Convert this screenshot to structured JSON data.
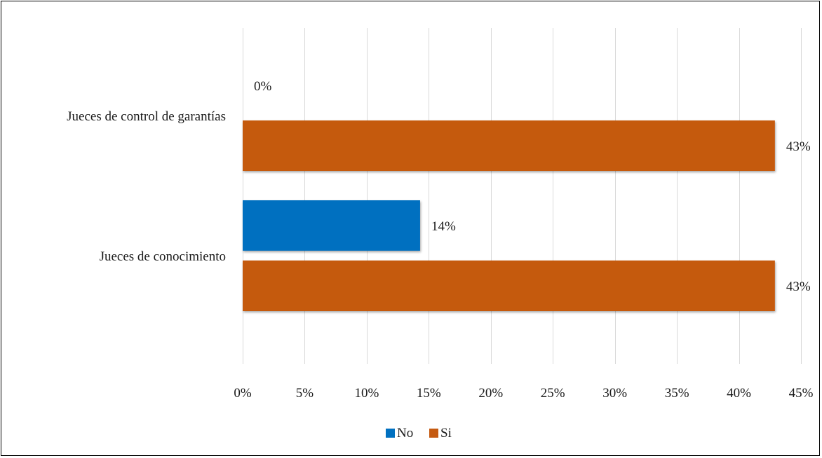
{
  "chart_data": {
    "type": "bar",
    "orientation": "horizontal",
    "title": "",
    "categories": [
      "Jueces de control de garantías",
      "Jueces de conocimiento"
    ],
    "series": [
      {
        "name": "No",
        "color": "#0070C0",
        "values": [
          0,
          14.3
        ],
        "labels": [
          "0%",
          "14%"
        ]
      },
      {
        "name": "Si",
        "color": "#C55A11",
        "values": [
          42.9,
          42.9
        ],
        "labels": [
          "43%",
          "43%"
        ]
      }
    ],
    "xlim": [
      0,
      45
    ],
    "xticks": [
      0,
      5,
      10,
      15,
      20,
      25,
      30,
      35,
      40,
      45
    ],
    "xtick_labels": [
      "0%",
      "5%",
      "10%",
      "15%",
      "20%",
      "25%",
      "30%",
      "35%",
      "40%",
      "45%"
    ],
    "xlabel": "",
    "ylabel": "",
    "grid": true,
    "gridline_color": "#D9D9D9",
    "legend_position": "bottom"
  }
}
